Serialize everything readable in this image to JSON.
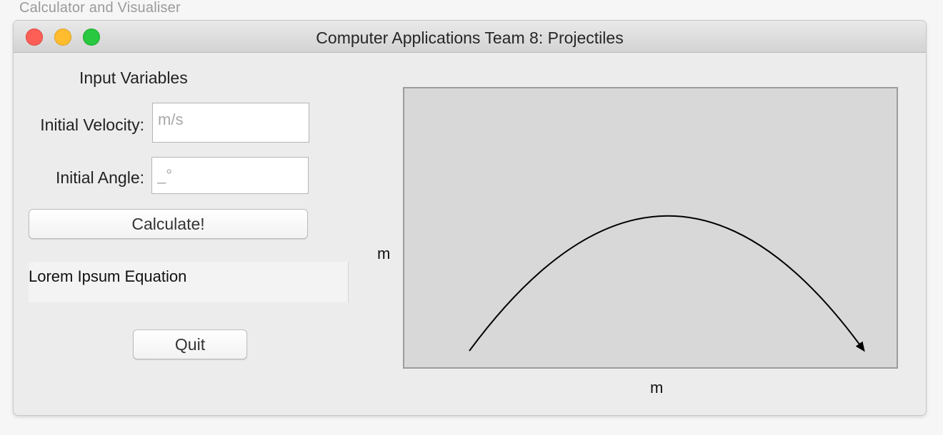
{
  "screen_caption": "Calculator and Visualiser",
  "window": {
    "title": "Computer Applications Team 8: Projectiles"
  },
  "form": {
    "section_title": "Input Variables",
    "velocity_label": "Initial Velocity:",
    "velocity_value": "",
    "velocity_placeholder": "m/s",
    "angle_label": "Initial Angle:",
    "angle_value": "",
    "angle_placeholder": "_°",
    "calculate_label": "Calculate!",
    "equation_text": "Lorem Ipsum Equation",
    "quit_label": "Quit"
  },
  "plot": {
    "xlabel": "m",
    "ylabel": "m"
  },
  "colors": {
    "plot_background": "#d8d8d8",
    "window_background": "#ececec",
    "close": "#fd5f57",
    "minimize": "#febc2e",
    "maximize": "#28c840"
  }
}
